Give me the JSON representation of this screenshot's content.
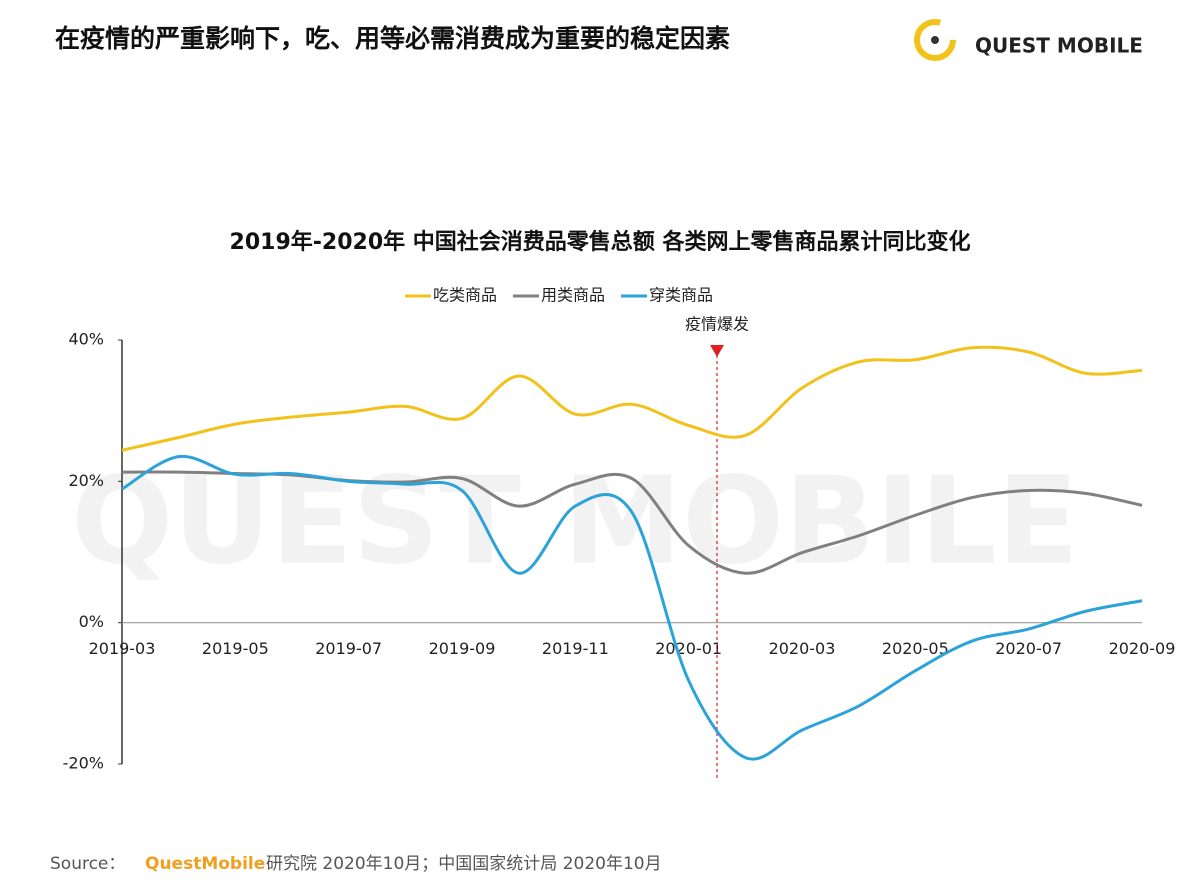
{
  "header": {
    "title": "在疫情的严重影响下，吃、用等必需消费成为重要的稳定因素",
    "logo": "QUEST MOBILE"
  },
  "chart_data": {
    "type": "line",
    "title": "2019年-2020年 中国社会消费品零售总额 各类网上零售商品累计同比变化",
    "categories": [
      "2019-03",
      null,
      "2019-05",
      null,
      "2019-07",
      null,
      "2019-09",
      null,
      "2019-11",
      null,
      "2020-01",
      null,
      "2020-03",
      null,
      "2020-05",
      null,
      "2020-07",
      null,
      "2020-09"
    ],
    "series": [
      {
        "name": "吃类商品",
        "color": "#f2c21b",
        "values": [
          24.4,
          26.2,
          28.1,
          29.1,
          29.8,
          30.6,
          28.9,
          34.9,
          29.5,
          30.9,
          27.9,
          26.5,
          33.2,
          36.9,
          37.2,
          38.9,
          38.3,
          35.3,
          35.7
        ]
      },
      {
        "name": "用类商品",
        "color": "#808080",
        "values": [
          21.3,
          21.3,
          21.1,
          20.9,
          20.1,
          19.9,
          20.4,
          16.5,
          19.6,
          20.4,
          10.9,
          7.0,
          9.9,
          12.3,
          15.2,
          17.7,
          18.7,
          18.3,
          16.6
        ]
      },
      {
        "name": "穿类商品",
        "color": "#2ba3d9",
        "values": [
          18.9,
          23.5,
          21.0,
          21.1,
          20.0,
          19.6,
          18.7,
          7.0,
          16.5,
          15.6,
          -8.2,
          -19.1,
          -15.2,
          -11.8,
          -6.8,
          -2.6,
          -0.9,
          1.6,
          3.1
        ]
      }
    ],
    "ylim": [
      -20,
      40
    ],
    "yticks": [
      {
        "value": -20,
        "label": "-20%"
      },
      {
        "value": 0,
        "label": "0%"
      },
      {
        "value": 20,
        "label": "20%"
      },
      {
        "value": 40,
        "label": "40%"
      }
    ],
    "annotation": "疫情爆发",
    "grid": false
  },
  "source": {
    "label": "Source：",
    "brand": "QuestMobile",
    "text": "研究院 2020年10月；中国国家统计局 2020年10月"
  }
}
